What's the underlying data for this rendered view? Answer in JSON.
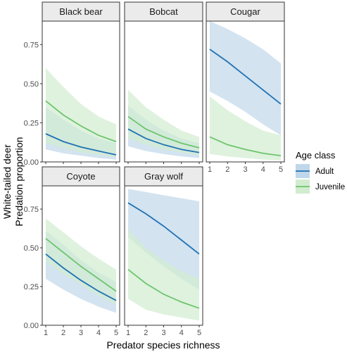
{
  "chart_data": {
    "type": "line",
    "xlabel": "Predator species richness",
    "ylabel_lines": [
      "White-tailed deer",
      "Predation proportion"
    ],
    "x": [
      1,
      2,
      3,
      4,
      5
    ],
    "x_ticks": [
      "1",
      "2",
      "3",
      "4",
      "5"
    ],
    "ylim": [
      0,
      0.9
    ],
    "y_ticks": [
      0.0,
      0.25,
      0.5,
      0.75
    ],
    "y_tick_labels": [
      "0.00",
      "0.25",
      "0.50",
      "0.75"
    ],
    "legend": {
      "title": "Age class",
      "placement": "right",
      "entries": [
        "Adult",
        "Juvenile"
      ]
    },
    "colors": {
      "Adult": "#1f72b4",
      "Juvenile": "#6cc56c",
      "Adult_band": "#c0d7ea",
      "Juvenile_band": "#d2ecd0",
      "strip_fill": "#ebebeb",
      "strip_border": "#333333",
      "panel_border": "#333333"
    },
    "panels": [
      {
        "title": "Black bear",
        "series": [
          {
            "name": "Adult",
            "values": [
              0.18,
              0.13,
              0.095,
              0.07,
              0.045
            ],
            "lower": [
              0.08,
              0.055,
              0.04,
              0.025,
              0.015
            ],
            "upper": [
              0.35,
              0.27,
              0.2,
              0.15,
              0.12
            ]
          },
          {
            "name": "Juvenile",
            "values": [
              0.39,
              0.3,
              0.23,
              0.17,
              0.13
            ],
            "lower": [
              0.12,
              0.09,
              0.06,
              0.045,
              0.03
            ],
            "upper": [
              0.6,
              0.48,
              0.37,
              0.29,
              0.24
            ]
          }
        ]
      },
      {
        "title": "Bobcat",
        "series": [
          {
            "name": "Adult",
            "values": [
              0.21,
              0.15,
              0.11,
              0.08,
              0.06
            ],
            "lower": [
              0.1,
              0.07,
              0.05,
              0.035,
              0.025
            ],
            "upper": [
              0.36,
              0.27,
              0.2,
              0.15,
              0.12
            ]
          },
          {
            "name": "Juvenile",
            "values": [
              0.29,
              0.21,
              0.16,
              0.12,
              0.09
            ],
            "lower": [
              0.15,
              0.11,
              0.08,
              0.06,
              0.04
            ],
            "upper": [
              0.46,
              0.35,
              0.27,
              0.2,
              0.16
            ]
          }
        ]
      },
      {
        "title": "Cougar",
        "series": [
          {
            "name": "Adult",
            "values": [
              0.72,
              0.64,
              0.55,
              0.46,
              0.37
            ],
            "lower": [
              0.45,
              0.39,
              0.32,
              0.24,
              0.17
            ],
            "upper": [
              0.9,
              0.85,
              0.79,
              0.72,
              0.63
            ]
          },
          {
            "name": "Juvenile",
            "values": [
              0.16,
              0.11,
              0.08,
              0.055,
              0.04
            ],
            "lower": [
              0.05,
              0.035,
              0.025,
              0.015,
              0.01
            ],
            "upper": [
              0.42,
              0.33,
              0.26,
              0.2,
              0.17
            ]
          }
        ]
      },
      {
        "title": "Coyote",
        "series": [
          {
            "name": "Adult",
            "values": [
              0.46,
              0.37,
              0.29,
              0.22,
              0.16
            ],
            "lower": [
              0.3,
              0.23,
              0.17,
              0.12,
              0.08
            ],
            "upper": [
              0.61,
              0.52,
              0.42,
              0.34,
              0.28
            ]
          },
          {
            "name": "Juvenile",
            "values": [
              0.56,
              0.47,
              0.38,
              0.3,
              0.22
            ],
            "lower": [
              0.41,
              0.33,
              0.26,
              0.19,
              0.13
            ],
            "upper": [
              0.69,
              0.6,
              0.51,
              0.43,
              0.36
            ]
          }
        ]
      },
      {
        "title": "Gray wolf",
        "series": [
          {
            "name": "Adult",
            "values": [
              0.79,
              0.72,
              0.64,
              0.55,
              0.46
            ],
            "lower": [
              0.57,
              0.47,
              0.38,
              0.3,
              0.23
            ],
            "upper": [
              0.88,
              0.86,
              0.84,
              0.82,
              0.8
            ]
          },
          {
            "name": "Juvenile",
            "values": [
              0.36,
              0.27,
              0.2,
              0.15,
              0.11
            ],
            "lower": [
              0.17,
              0.1,
              0.07,
              0.05,
              0.03
            ],
            "upper": [
              0.62,
              0.5,
              0.42,
              0.35,
              0.3
            ]
          }
        ]
      }
    ]
  }
}
